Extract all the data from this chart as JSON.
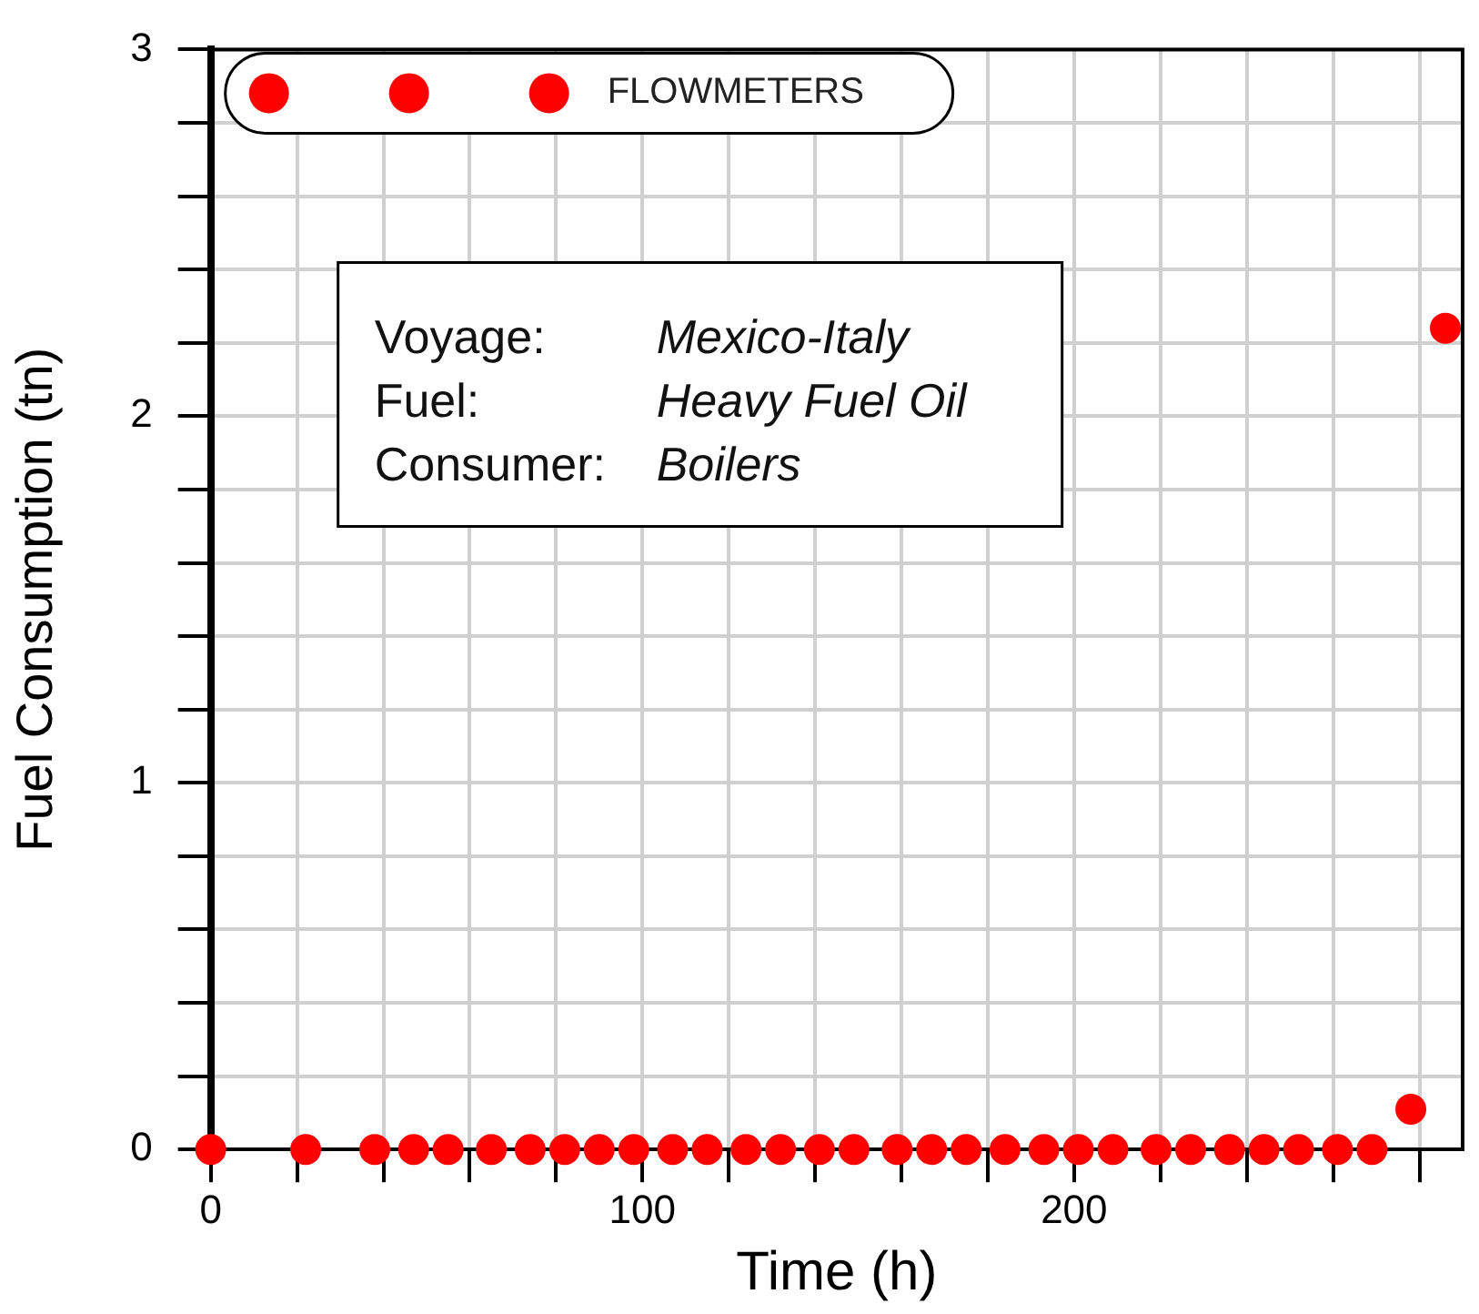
{
  "chart_data": {
    "type": "scatter",
    "xlabel": "Time (h)",
    "ylabel": "Fuel Consumption (tn)",
    "x": [
      0,
      22,
      38,
      47,
      55,
      65,
      74,
      82,
      90,
      98,
      107,
      115,
      124,
      132,
      141,
      149,
      159,
      167,
      175,
      184,
      193,
      201,
      209,
      219,
      227,
      236,
      244,
      252,
      261,
      269,
      278,
      286
    ],
    "series": [
      {
        "name": "FLOWMETERS",
        "color": "#ff0000",
        "values": [
          0,
          0,
          0,
          0,
          0,
          0,
          0,
          0,
          0,
          0,
          0,
          0,
          0,
          0,
          0,
          0,
          0,
          0,
          0,
          0,
          0,
          0,
          0,
          0,
          0,
          0,
          0,
          0,
          0,
          0,
          0.11,
          2.24
        ]
      }
    ],
    "xlim": [
      0,
      290
    ],
    "ylim": [
      0,
      3
    ],
    "xticks": [
      0,
      {
        "value": 20,
        "label": null
      },
      {
        "value": 40,
        "label": null
      },
      {
        "value": 60,
        "label": null
      },
      {
        "value": 80,
        "label": null
      },
      100,
      {
        "value": 120,
        "label": null
      },
      {
        "value": 140,
        "label": null
      },
      {
        "value": 160,
        "label": null
      },
      {
        "value": 180,
        "label": null
      },
      200,
      {
        "value": 220,
        "label": null
      },
      {
        "value": 240,
        "label": null
      },
      {
        "value": 260,
        "label": null
      },
      {
        "value": 280,
        "label": null
      }
    ],
    "yticks": [
      0,
      {
        "value": 0.2,
        "label": null
      },
      {
        "value": 0.4,
        "label": null
      },
      {
        "value": 0.6,
        "label": null
      },
      {
        "value": 0.8,
        "label": null
      },
      1,
      {
        "value": 1.2,
        "label": null
      },
      {
        "value": 1.4,
        "label": null
      },
      {
        "value": 1.6,
        "label": null
      },
      {
        "value": 1.8,
        "label": null
      },
      2,
      {
        "value": 2.2,
        "label": null
      },
      {
        "value": 2.4,
        "label": null
      },
      {
        "value": 2.6,
        "label": null
      },
      {
        "value": 2.8,
        "label": null
      },
      3
    ],
    "grid": true,
    "legend": "top left",
    "marker": "circle",
    "annotations": [
      "Voyage: Mexico-Italy",
      "Fuel: Heavy Fuel Oil",
      "Consumer: Boilers"
    ]
  }
}
